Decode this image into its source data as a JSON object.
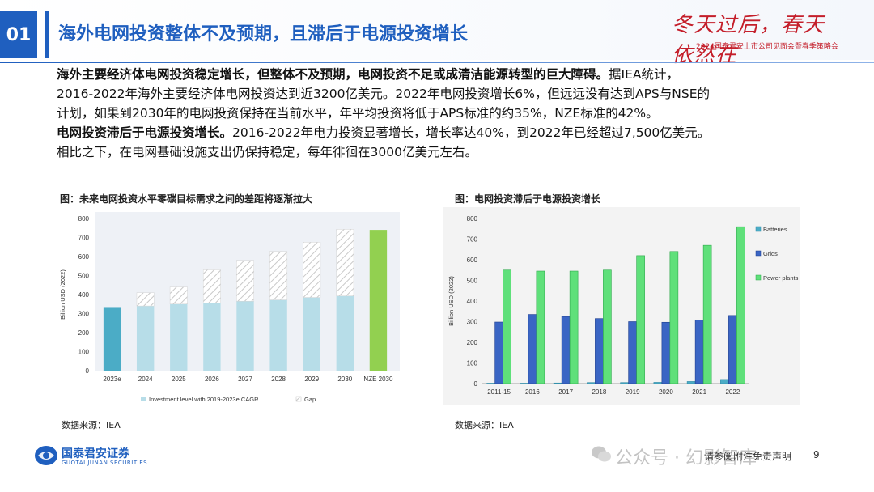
{
  "header": {
    "section_number": "01",
    "title": "海外电网投资整体不及预期，且滞后于电源投资增长",
    "logo_script": "冬天过后，春天依然在",
    "logo_subtitle": "2024国泰君安上市公司见面会暨春季策略会"
  },
  "paragraph1": {
    "line1_bold": "海外主要经济体电网投资稳定增长，但整体不及预期，电网投资不足或成清洁能源转型的巨大障碍。",
    "line1_rest": "据IEA统计，",
    "line2": "2016-2022年海外主要经济体电网投资达到近3200亿美元。2022年电网投资增长6%，但远远没有达到APS与NSE的",
    "line3": "计划，如果到2030年的电网投资保持在当前水平，年平均投资将低于APS标准的约35%，NZE标准的42%。"
  },
  "paragraph2": {
    "line1_bold": "电网投资滞后于电源投资增长。",
    "line1_rest": "2016-2022年电力投资显著增长，增长率达40%，到2022年已经超过7,500亿美元。",
    "line2": "相比之下，在电网基础设施支出仍保持稳定，每年徘徊在3000亿美元左右。"
  },
  "figure1": {
    "title": "图：未来电网投资水平零碳目标需求之间的差距将逐渐拉大",
    "source": "数据来源：IEA"
  },
  "figure2": {
    "title": "图：电网投资滞后于电源投资增长",
    "source": "数据来源：IEA"
  },
  "footer": {
    "company_cn": "国泰君安证券",
    "company_en": "GUOTAI JUNAN SECURITIES",
    "disclaimer": "请参阅附注免责声明",
    "page": "9",
    "watermark": "公众号 · 幻影智库"
  },
  "colors": {
    "brand_blue": "#1f5fbf",
    "accent_red": "#c41e2a"
  },
  "chart_data": [
    {
      "type": "bar",
      "ylabel": "Billion USD (2022)",
      "ylim": [
        0,
        800
      ],
      "yticks": [
        0,
        100,
        200,
        300,
        400,
        500,
        600,
        700,
        800
      ],
      "categories": [
        "2023e",
        "2024",
        "2025",
        "2026",
        "2027",
        "2028",
        "2029",
        "2030",
        "NZE 2030"
      ],
      "series": [
        {
          "name": "Investment level with 2019-2023e CAGR",
          "values": [
            330,
            340,
            350,
            355,
            365,
            372,
            385,
            393,
            null
          ]
        },
        {
          "name": "Gap",
          "values": [
            0,
            70,
            90,
            175,
            215,
            255,
            290,
            350,
            null
          ]
        }
      ],
      "highlight": {
        "2023e": 330,
        "NZE 2030": 740
      },
      "legend": "bottom",
      "stacked": true
    },
    {
      "type": "bar",
      "ylabel": "Billion USD (2022)",
      "ylim": [
        0,
        800
      ],
      "yticks": [
        0,
        100,
        200,
        300,
        400,
        500,
        600,
        700,
        800
      ],
      "categories": [
        "2011-15",
        "2016",
        "2017",
        "2018",
        "2019",
        "2020",
        "2021",
        "2022"
      ],
      "series": [
        {
          "name": "Batteries",
          "values": [
            2,
            2,
            3,
            5,
            5,
            6,
            10,
            20
          ]
        },
        {
          "name": "Grids",
          "values": [
            298,
            335,
            325,
            315,
            300,
            297,
            308,
            330
          ]
        },
        {
          "name": "Power plants",
          "values": [
            550,
            545,
            545,
            550,
            620,
            640,
            670,
            760
          ]
        }
      ],
      "legend": "right"
    }
  ]
}
